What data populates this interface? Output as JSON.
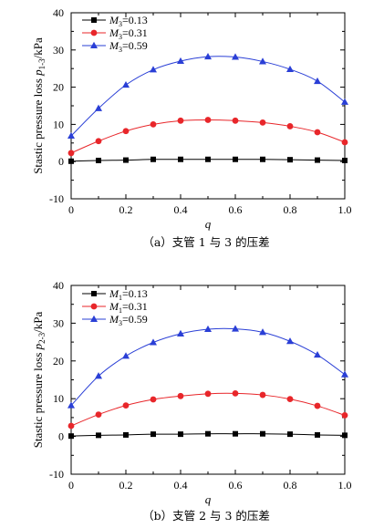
{
  "chart_data": [
    {
      "type": "line",
      "caption": "（a）支管 1 与 3 的压差",
      "xlabel": "q",
      "ylabel_main": "Stastic pressure loss ",
      "ylabel_var": "p",
      "ylabel_sub": "1-3",
      "ylabel_unit": "/kPa",
      "xlim": [
        0,
        1.0
      ],
      "ylim": [
        -10,
        40
      ],
      "xticks": [
        "0",
        "0.2",
        "0.4",
        "0.6",
        "0.8",
        "1.0"
      ],
      "yticks": [
        "-10",
        "0",
        "10",
        "20",
        "30",
        "40"
      ],
      "x": [
        0,
        0.1,
        0.2,
        0.3,
        0.4,
        0.5,
        0.6,
        0.7,
        0.8,
        0.9,
        1.0
      ],
      "series": [
        {
          "name_var": "M",
          "name_sub": "3",
          "name_val": "=0.13",
          "color": "#000000",
          "marker": "square",
          "values": [
            0.1,
            0.3,
            0.4,
            0.6,
            0.6,
            0.6,
            0.6,
            0.6,
            0.5,
            0.4,
            0.3
          ]
        },
        {
          "name_var": "M",
          "name_sub": "3",
          "name_val": "=0.31",
          "color": "#e8262a",
          "marker": "circle",
          "values": [
            2.3,
            5.5,
            8.2,
            10.0,
            11.0,
            11.2,
            11.0,
            10.5,
            9.5,
            7.9,
            5.2
          ]
        },
        {
          "name_var": "M",
          "name_sub": "3",
          "name_val": "=0.59",
          "color": "#2a3fd6",
          "marker": "triangle",
          "values": [
            6.9,
            14.3,
            20.6,
            24.7,
            27.0,
            28.2,
            28.1,
            26.9,
            24.8,
            21.6,
            16.0
          ]
        }
      ]
    },
    {
      "type": "line",
      "caption": "（b）支管 2 与 3 的压差",
      "xlabel": "q",
      "ylabel_main": "Stastic pressure loss ",
      "ylabel_var": "p",
      "ylabel_sub": "2-3",
      "ylabel_unit": "/kPa",
      "xlim": [
        0,
        1.0
      ],
      "ylim": [
        -10,
        40
      ],
      "xticks": [
        "0",
        "0.2",
        "0.4",
        "0.6",
        "0.8",
        "1.0"
      ],
      "yticks": [
        "-10",
        "0",
        "10",
        "20",
        "30",
        "40"
      ],
      "x": [
        0,
        0.1,
        0.2,
        0.3,
        0.4,
        0.5,
        0.6,
        0.7,
        0.8,
        0.9,
        1.0
      ],
      "series": [
        {
          "name_var": "M",
          "name_sub": "1",
          "name_val": "=0.13",
          "color": "#000000",
          "marker": "square",
          "values": [
            0.1,
            0.3,
            0.4,
            0.6,
            0.6,
            0.7,
            0.7,
            0.7,
            0.6,
            0.4,
            0.3
          ]
        },
        {
          "name_var": "M",
          "name_sub": "1",
          "name_val": "=0.31",
          "color": "#e8262a",
          "marker": "circle",
          "values": [
            2.8,
            5.8,
            8.2,
            9.8,
            10.7,
            11.3,
            11.4,
            11.0,
            9.9,
            8.1,
            5.6
          ]
        },
        {
          "name_var": "M",
          "name_sub": "3",
          "name_val": "=0.59",
          "color": "#2a3fd6",
          "marker": "triangle",
          "values": [
            8.2,
            16.0,
            21.3,
            24.9,
            27.2,
            28.4,
            28.5,
            27.6,
            25.2,
            21.6,
            16.4
          ]
        }
      ]
    }
  ]
}
